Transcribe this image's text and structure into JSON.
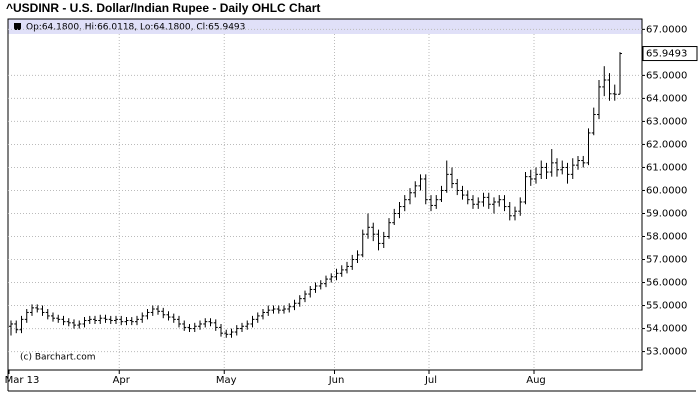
{
  "chart_data": {
    "type": "ohlc",
    "title": "^USDINR - U.S. Dollar/Indian Rupee - Daily OHLC Chart",
    "header_text": "Op:64.1800, Hi:66.0118, Lo:64.1800, Cl:65.9493",
    "source": "(c) Barchart.com",
    "last_close_label": "65.9493",
    "color": "#000000",
    "header_color": "#e0e0f8",
    "grid": true,
    "ylim": [
      52.2,
      67.45
    ],
    "yticks": [
      {
        "value": 53,
        "label": "53.0000"
      },
      {
        "value": 54,
        "label": "54.0000"
      },
      {
        "value": 55,
        "label": "55.0000"
      },
      {
        "value": 56,
        "label": "56.0000"
      },
      {
        "value": 57,
        "label": "57.0000"
      },
      {
        "value": 58,
        "label": "58.0000"
      },
      {
        "value": 59,
        "label": "59.0000"
      },
      {
        "value": 60,
        "label": "60.0000"
      },
      {
        "value": 61,
        "label": "61.0000"
      },
      {
        "value": 62,
        "label": "62.0000"
      },
      {
        "value": 63,
        "label": "63.0000"
      },
      {
        "value": 64,
        "label": "64.0000"
      },
      {
        "value": 65,
        "label": "65.0000"
      },
      {
        "value": 67,
        "label": "67.0000"
      }
    ],
    "categories": [
      "Mar 13",
      null,
      null,
      null,
      null,
      null,
      null,
      null,
      null,
      null,
      null,
      null,
      null,
      null,
      null,
      null,
      null,
      null,
      null,
      null,
      null,
      "Apr",
      null,
      null,
      null,
      null,
      null,
      null,
      null,
      null,
      null,
      null,
      null,
      null,
      null,
      null,
      null,
      null,
      null,
      null,
      null,
      "May",
      null,
      null,
      null,
      null,
      null,
      null,
      null,
      null,
      null,
      null,
      null,
      null,
      null,
      null,
      null,
      null,
      null,
      null,
      null,
      null,
      "Jun",
      null,
      null,
      null,
      null,
      null,
      null,
      null,
      null,
      null,
      null,
      null,
      null,
      null,
      null,
      null,
      null,
      null,
      "Jul",
      null,
      null,
      null,
      null,
      null,
      null,
      null,
      null,
      null,
      null,
      null,
      null,
      null,
      null,
      null,
      null,
      null,
      null,
      null,
      "Aug",
      null,
      null,
      null,
      null,
      null,
      null,
      null,
      null,
      null,
      null,
      null,
      null,
      null,
      null,
      null,
      null
    ],
    "open": [
      54.1,
      54.2,
      53.95,
      54.4,
      54.7,
      54.9,
      54.85,
      54.7,
      54.55,
      54.45,
      54.4,
      54.3,
      54.25,
      54.15,
      54.2,
      54.35,
      54.4,
      54.35,
      54.45,
      54.4,
      54.35,
      54.4,
      54.3,
      54.35,
      54.3,
      54.4,
      54.55,
      54.7,
      54.85,
      54.75,
      54.6,
      54.5,
      54.4,
      54.2,
      54.05,
      54.0,
      54.1,
      54.2,
      54.3,
      54.25,
      54.05,
      53.8,
      53.75,
      53.85,
      54.0,
      54.1,
      54.2,
      54.4,
      54.55,
      54.7,
      54.8,
      54.85,
      54.8,
      54.85,
      54.95,
      55.1,
      55.3,
      55.5,
      55.7,
      55.85,
      55.95,
      56.15,
      56.25,
      56.4,
      56.55,
      56.7,
      57.0,
      57.2,
      58.1,
      58.4,
      58.1,
      57.7,
      58.0,
      58.6,
      59.0,
      59.3,
      59.6,
      59.9,
      60.2,
      60.5,
      59.6,
      59.35,
      59.6,
      60.0,
      60.7,
      60.3,
      60.0,
      59.8,
      59.6,
      59.4,
      59.5,
      59.7,
      59.4,
      59.5,
      59.6,
      59.3,
      58.9,
      59.1,
      59.5,
      60.6,
      60.5,
      60.7,
      61.0,
      60.8,
      61.2,
      60.9,
      61.0,
      60.7,
      61.1,
      61.3,
      61.2,
      62.5,
      63.3,
      64.5,
      64.8,
      64.2,
      64.18
    ],
    "high": [
      54.35,
      54.35,
      54.55,
      54.85,
      55.05,
      55.05,
      55.0,
      54.85,
      54.7,
      54.6,
      54.55,
      54.45,
      54.4,
      54.35,
      54.5,
      54.55,
      54.55,
      54.6,
      54.6,
      54.55,
      54.55,
      54.55,
      54.5,
      54.5,
      54.55,
      54.7,
      54.85,
      55.0,
      55.0,
      54.9,
      54.75,
      54.65,
      54.55,
      54.35,
      54.2,
      54.25,
      54.35,
      54.45,
      54.45,
      54.4,
      54.2,
      53.95,
      54.0,
      54.15,
      54.25,
      54.35,
      54.55,
      54.7,
      54.85,
      55.0,
      55.0,
      55.0,
      55.0,
      55.1,
      55.25,
      55.45,
      55.65,
      55.85,
      56.0,
      56.1,
      56.3,
      56.4,
      56.6,
      56.75,
      56.9,
      57.2,
      57.4,
      58.3,
      59.0,
      58.6,
      58.3,
      58.2,
      58.8,
      59.2,
      59.5,
      59.8,
      60.1,
      60.4,
      60.7,
      60.7,
      59.8,
      59.8,
      60.2,
      61.3,
      61.0,
      60.5,
      60.2,
      60.0,
      59.8,
      59.7,
      59.9,
      59.9,
      59.7,
      59.8,
      59.8,
      59.5,
      59.3,
      59.7,
      60.8,
      60.9,
      61.0,
      61.3,
      61.2,
      61.8,
      61.4,
      61.3,
      61.2,
      61.4,
      61.5,
      61.5,
      62.7,
      63.6,
      64.8,
      65.4,
      65.1,
      64.6,
      66.0118
    ],
    "low": [
      53.7,
      53.8,
      53.8,
      54.25,
      54.55,
      54.7,
      54.55,
      54.4,
      54.3,
      54.25,
      54.15,
      54.1,
      54.0,
      54.0,
      54.05,
      54.2,
      54.2,
      54.2,
      54.25,
      54.2,
      54.2,
      54.15,
      54.15,
      54.15,
      54.15,
      54.25,
      54.4,
      54.55,
      54.6,
      54.45,
      54.35,
      54.25,
      54.05,
      53.9,
      53.85,
      53.85,
      53.95,
      54.05,
      54.1,
      53.9,
      53.65,
      53.6,
      53.6,
      53.7,
      53.85,
      53.95,
      54.05,
      54.25,
      54.4,
      54.55,
      54.65,
      54.65,
      54.65,
      54.7,
      54.8,
      54.95,
      55.15,
      55.35,
      55.55,
      55.7,
      55.8,
      56.0,
      56.1,
      56.25,
      56.4,
      56.55,
      56.85,
      57.1,
      57.9,
      57.8,
      57.4,
      57.5,
      57.9,
      58.5,
      58.8,
      59.1,
      59.4,
      59.7,
      60.0,
      59.4,
      59.1,
      59.2,
      59.5,
      59.9,
      60.1,
      59.8,
      59.6,
      59.4,
      59.2,
      59.2,
      59.3,
      59.2,
      59.0,
      59.3,
      59.1,
      58.7,
      58.7,
      58.9,
      59.4,
      60.2,
      60.3,
      60.5,
      60.5,
      60.6,
      60.6,
      60.7,
      60.3,
      60.5,
      60.9,
      61.0,
      61.1,
      62.4,
      63.1,
      64.1,
      63.9,
      63.9,
      64.18
    ],
    "close": [
      54.2,
      53.95,
      54.4,
      54.7,
      54.9,
      54.85,
      54.7,
      54.55,
      54.45,
      54.4,
      54.3,
      54.25,
      54.15,
      54.2,
      54.35,
      54.4,
      54.35,
      54.45,
      54.4,
      54.35,
      54.4,
      54.3,
      54.35,
      54.3,
      54.4,
      54.55,
      54.7,
      54.85,
      54.75,
      54.6,
      54.5,
      54.4,
      54.2,
      54.05,
      54.0,
      54.1,
      54.2,
      54.3,
      54.25,
      54.05,
      53.8,
      53.75,
      53.85,
      54.0,
      54.1,
      54.2,
      54.4,
      54.55,
      54.7,
      54.8,
      54.85,
      54.8,
      54.85,
      54.95,
      55.1,
      55.3,
      55.5,
      55.7,
      55.85,
      55.95,
      56.15,
      56.25,
      56.4,
      56.55,
      56.7,
      57.0,
      57.2,
      58.1,
      58.4,
      58.1,
      57.7,
      58.0,
      58.6,
      59.0,
      59.3,
      59.6,
      59.9,
      60.2,
      60.5,
      59.6,
      59.35,
      59.6,
      60.0,
      60.7,
      60.3,
      60.0,
      59.8,
      59.6,
      59.4,
      59.5,
      59.7,
      59.4,
      59.5,
      59.6,
      59.3,
      58.9,
      59.1,
      59.5,
      60.6,
      60.5,
      60.7,
      61.0,
      60.8,
      61.2,
      60.9,
      61.0,
      60.7,
      61.1,
      61.3,
      61.2,
      62.5,
      63.3,
      64.5,
      64.8,
      64.2,
      64.18,
      65.9493
    ]
  }
}
